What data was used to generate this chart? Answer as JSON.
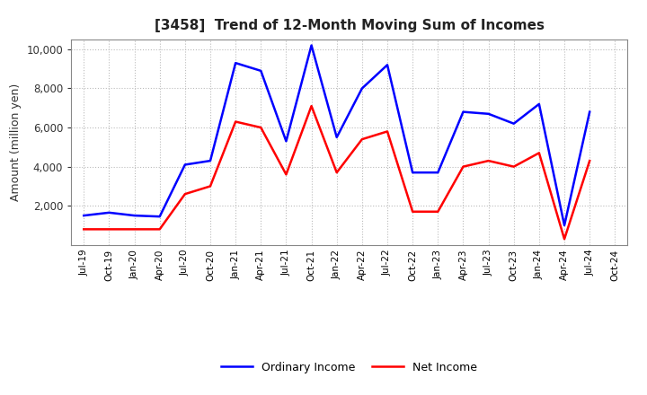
{
  "title": "[3458]  Trend of 12-Month Moving Sum of Incomes",
  "ylabel": "Amount (million yen)",
  "x_labels": [
    "Jul-19",
    "Oct-19",
    "Jan-20",
    "Apr-20",
    "Jul-20",
    "Oct-20",
    "Jan-21",
    "Apr-21",
    "Jul-21",
    "Oct-21",
    "Jan-22",
    "Apr-22",
    "Jul-22",
    "Oct-22",
    "Jan-23",
    "Apr-23",
    "Jul-23",
    "Oct-23",
    "Jan-24",
    "Apr-24",
    "Jul-24",
    "Oct-24"
  ],
  "ordinary_income": [
    1500,
    1650,
    1500,
    1450,
    4100,
    4300,
    9300,
    8900,
    5300,
    10200,
    5500,
    8000,
    9200,
    3700,
    3700,
    6800,
    6700,
    6200,
    7200,
    1000,
    6800,
    null
  ],
  "net_income": [
    800,
    800,
    800,
    800,
    2600,
    3000,
    6300,
    6000,
    3600,
    7100,
    3700,
    5400,
    5800,
    1700,
    1700,
    4000,
    4300,
    4000,
    4700,
    300,
    4300,
    null
  ],
  "ylim": [
    0,
    10500
  ],
  "yticks": [
    2000,
    4000,
    6000,
    8000,
    10000
  ],
  "ordinary_color": "#0000FF",
  "net_color": "#FF0000",
  "background_color": "#FFFFFF",
  "grid_color": "#BBBBBB",
  "legend_labels": [
    "Ordinary Income",
    "Net Income"
  ]
}
